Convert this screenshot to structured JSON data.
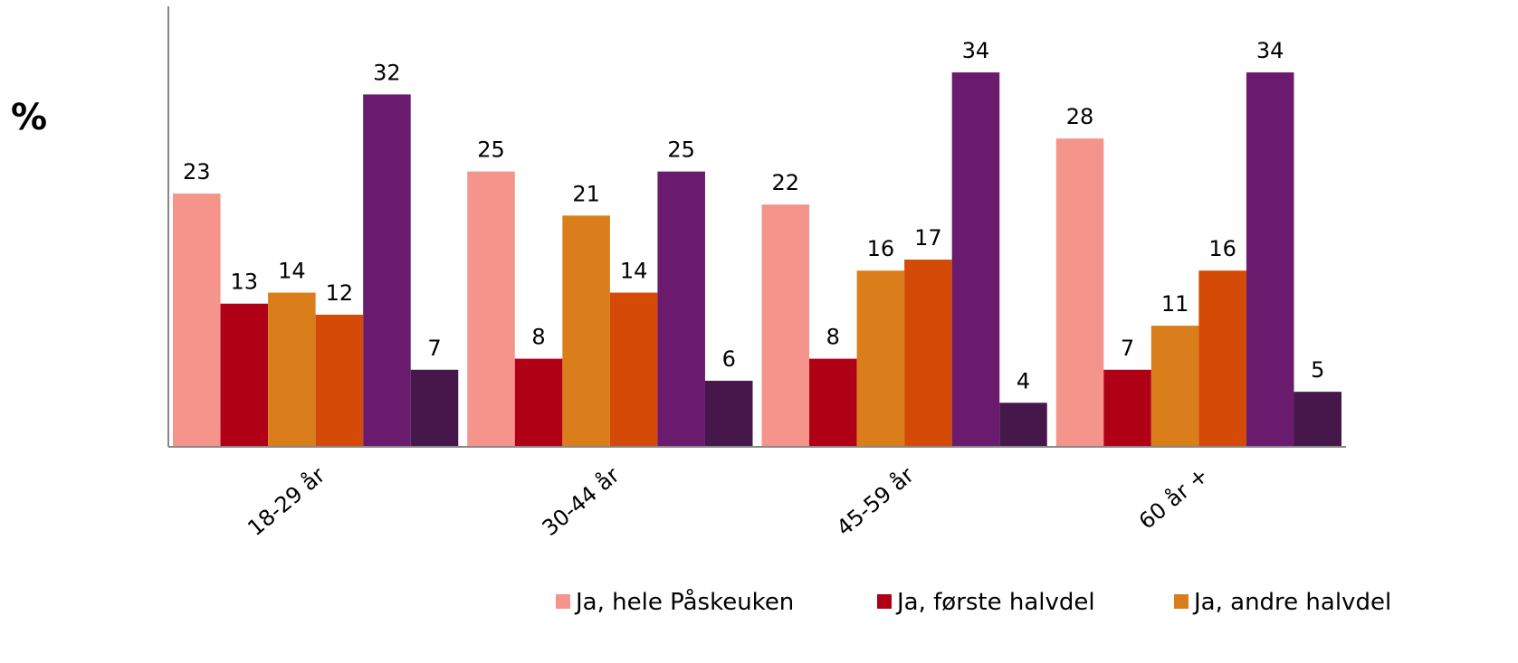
{
  "chart_data": {
    "type": "bar",
    "y_label": "%",
    "categories": [
      "18-29 år",
      "30-44 år",
      "45-59 år",
      "60 år +"
    ],
    "series": [
      {
        "name": "Ja, hele Påskeuken",
        "color": "#f4948a",
        "values": [
          23,
          25,
          22,
          28
        ]
      },
      {
        "name": "Ja, første halvdel",
        "color": "#b00016",
        "values": [
          13,
          8,
          8,
          7
        ]
      },
      {
        "name": "Ja, andre halvdel",
        "color": "#d97e1a",
        "values": [
          14,
          21,
          16,
          11
        ]
      },
      {
        "color": "#d54a06",
        "values": [
          12,
          14,
          17,
          16
        ]
      },
      {
        "color": "#6a1b6e",
        "values": [
          32,
          25,
          34,
          34
        ]
      },
      {
        "color": "#45174a",
        "values": [
          7,
          6,
          4,
          5
        ]
      }
    ],
    "ylim": [
      0,
      40
    ]
  }
}
